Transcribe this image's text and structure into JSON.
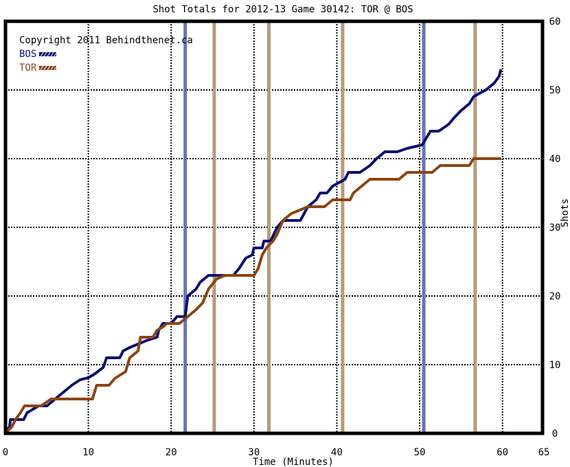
{
  "chart_data": {
    "type": "line",
    "title": "Shot Totals for 2012-13 Game 30142: TOR @ BOS",
    "xlabel": "Time (Minutes)",
    "ylabel": "Shots",
    "xlim": [
      0,
      65
    ],
    "ylim": [
      0,
      60
    ],
    "x_ticks": [
      0,
      10,
      20,
      30,
      40,
      50,
      60,
      65
    ],
    "y_ticks": [
      0,
      10,
      20,
      30,
      40,
      50,
      60
    ],
    "grid": true,
    "legend_position": "top-left",
    "copyright": "Copyright 2011 Behindthenet.ca",
    "series": [
      {
        "name": "BOS",
        "color": "#0a1172",
        "points": [
          [
            0,
            0
          ],
          [
            0.5,
            1
          ],
          [
            0.6,
            2
          ],
          [
            2.2,
            2
          ],
          [
            2.6,
            3
          ],
          [
            4,
            4
          ],
          [
            5,
            4
          ],
          [
            6,
            5
          ],
          [
            7,
            6
          ],
          [
            8,
            7
          ],
          [
            9,
            7.8
          ],
          [
            10,
            8.1
          ],
          [
            10.7,
            8.6
          ],
          [
            11.8,
            9.6
          ],
          [
            12.2,
            11
          ],
          [
            13.8,
            11
          ],
          [
            14.2,
            12
          ],
          [
            15,
            12.5
          ],
          [
            16,
            13
          ],
          [
            17,
            13.5
          ],
          [
            18.3,
            14
          ],
          [
            18.5,
            15
          ],
          [
            19,
            16
          ],
          [
            20,
            16
          ],
          [
            20.7,
            17
          ],
          [
            21.7,
            17
          ],
          [
            22,
            20
          ],
          [
            23,
            21
          ],
          [
            23.5,
            22
          ],
          [
            24.5,
            23
          ],
          [
            27.5,
            23
          ],
          [
            28.2,
            24
          ],
          [
            29,
            25.5
          ],
          [
            29.8,
            26
          ],
          [
            30,
            27
          ],
          [
            31,
            27
          ],
          [
            31.2,
            28
          ],
          [
            32,
            28
          ],
          [
            32.8,
            30
          ],
          [
            33.5,
            31
          ],
          [
            35.6,
            31
          ],
          [
            36.5,
            33
          ],
          [
            37.5,
            34
          ],
          [
            38,
            35
          ],
          [
            38.8,
            35
          ],
          [
            39.5,
            36
          ],
          [
            41,
            37
          ],
          [
            41.4,
            38
          ],
          [
            42.8,
            38
          ],
          [
            44,
            39
          ],
          [
            44.8,
            40
          ],
          [
            45.8,
            41
          ],
          [
            47.3,
            41
          ],
          [
            48.5,
            41.5
          ],
          [
            50.3,
            42
          ],
          [
            51.3,
            44
          ],
          [
            52.3,
            44
          ],
          [
            53.5,
            45
          ],
          [
            54.2,
            46
          ],
          [
            55,
            47
          ],
          [
            56,
            48
          ],
          [
            56.5,
            49
          ],
          [
            57.2,
            49.5
          ],
          [
            58,
            50
          ],
          [
            59,
            51
          ],
          [
            59.6,
            52
          ],
          [
            59.8,
            53
          ]
        ]
      },
      {
        "name": "TOR",
        "color": "#8b4513",
        "points": [
          [
            0,
            0
          ],
          [
            0.8,
            1
          ],
          [
            1.2,
            2
          ],
          [
            1.8,
            3
          ],
          [
            2.3,
            4
          ],
          [
            4.3,
            4
          ],
          [
            5.5,
            5
          ],
          [
            10.5,
            5
          ],
          [
            11,
            7
          ],
          [
            12.5,
            7
          ],
          [
            13.2,
            8
          ],
          [
            14.5,
            9
          ],
          [
            15,
            11
          ],
          [
            16,
            12
          ],
          [
            16.3,
            14
          ],
          [
            17.8,
            14
          ],
          [
            18.3,
            15
          ],
          [
            19,
            15.5
          ],
          [
            19.5,
            16
          ],
          [
            21,
            16
          ],
          [
            22,
            17
          ],
          [
            23,
            18
          ],
          [
            23.8,
            19
          ],
          [
            24.5,
            21
          ],
          [
            25.5,
            22.5
          ],
          [
            26.5,
            23
          ],
          [
            30,
            23
          ],
          [
            30.5,
            24
          ],
          [
            31,
            26
          ],
          [
            31.5,
            27
          ],
          [
            32.3,
            28
          ],
          [
            32.8,
            29
          ],
          [
            33.5,
            31
          ],
          [
            34.5,
            32
          ],
          [
            35.5,
            32.5
          ],
          [
            36.5,
            33
          ],
          [
            38.5,
            33
          ],
          [
            39.5,
            34
          ],
          [
            41.6,
            34
          ],
          [
            42,
            35
          ],
          [
            43,
            36
          ],
          [
            44,
            37
          ],
          [
            47.5,
            37
          ],
          [
            48.5,
            38
          ],
          [
            51.5,
            38
          ],
          [
            52.5,
            39
          ],
          [
            56,
            39
          ],
          [
            56.5,
            40
          ],
          [
            59.8,
            40
          ]
        ]
      }
    ],
    "goal_markers": [
      {
        "team": "BOS",
        "time": 21.7
      },
      {
        "team": "TOR",
        "time": 25.2
      },
      {
        "team": "TOR",
        "time": 31.8
      },
      {
        "team": "TOR",
        "time": 40.7
      },
      {
        "team": "BOS",
        "time": 50.5
      },
      {
        "team": "TOR",
        "time": 56.7
      }
    ],
    "colors": {
      "bos_line": "#0a1172",
      "tor_line": "#8b4513",
      "bos_marker": "#6a72b2",
      "tor_marker": "#b89a7c"
    }
  }
}
